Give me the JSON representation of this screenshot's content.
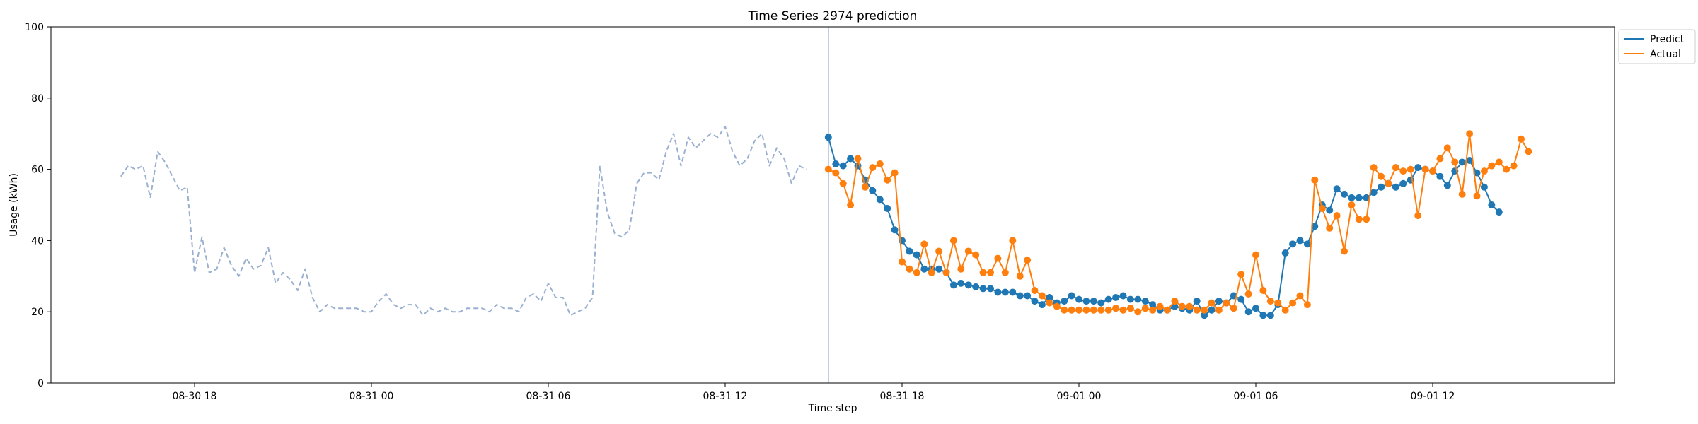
{
  "chart_data": {
    "type": "line",
    "title": "Time Series 2974 prediction",
    "xlabel": "Time step",
    "ylabel": "Usage (kWh)",
    "ylim": [
      0,
      100
    ],
    "xlim": [
      -24,
      152
    ],
    "yticks": [
      0,
      20,
      40,
      60,
      80,
      100
    ],
    "xticks": [
      {
        "x": 0,
        "label": "08-30 18"
      },
      {
        "x": 24,
        "label": "08-31 00"
      },
      {
        "x": 48,
        "label": "08-31 06"
      },
      {
        "x": 72,
        "label": "08-31 12"
      },
      {
        "x": 96,
        "label": "08-31 18"
      },
      {
        "x": 120,
        "label": "09-01 00"
      },
      {
        "x": 144,
        "label": "09-01 06"
      },
      {
        "x": 168,
        "label": "09-01 12"
      }
    ],
    "split_x": 86,
    "legend_location": "upper right outside",
    "series": [
      {
        "name": "",
        "style": "dashed",
        "color": "#9ab0d0",
        "x_start": -10,
        "values": [
          58,
          61,
          60,
          61,
          52,
          65,
          62,
          58,
          54,
          55,
          31,
          41,
          31,
          32,
          38,
          33,
          30,
          35,
          32,
          33,
          38,
          28,
          31,
          29,
          26,
          32,
          24,
          20,
          22,
          21,
          21,
          21,
          21,
          20,
          20,
          23,
          25,
          22,
          21,
          22,
          22,
          19,
          21,
          20,
          21,
          20,
          20,
          21,
          21,
          21,
          20,
          22,
          21,
          21,
          20,
          24,
          25,
          23,
          28,
          24,
          24,
          19,
          20,
          21,
          24,
          61,
          48,
          42,
          41,
          43,
          56,
          59,
          59,
          57,
          65,
          70,
          61,
          69,
          66,
          68,
          70,
          69,
          72,
          65,
          61,
          63,
          68,
          70,
          61,
          66,
          63,
          56,
          61,
          60
        ]
      },
      {
        "name": "Predict",
        "style": "solid-markers",
        "color": "#1f77b4",
        "x_start": 86,
        "values": [
          69,
          61.5,
          61,
          63,
          61,
          57,
          54,
          51.5,
          49,
          43,
          40,
          37,
          36,
          32,
          32,
          32,
          31,
          27.5,
          28,
          27.5,
          27,
          26.5,
          26.5,
          25.5,
          25.5,
          25.5,
          24.5,
          24.5,
          23,
          22,
          24,
          22.5,
          23,
          24.5,
          23.5,
          23,
          23,
          22.5,
          23.5,
          24,
          24.5,
          23.5,
          23.5,
          23,
          22,
          20.5,
          20.5,
          21.5,
          21,
          20.5,
          23,
          19,
          20.5,
          23,
          22.5,
          24.5,
          23.5,
          20,
          21,
          19,
          19,
          22,
          36.5,
          39,
          40,
          39,
          44,
          50,
          48.5,
          54.5,
          53,
          52,
          52,
          52,
          53.5,
          55,
          56,
          55,
          56,
          57,
          60.5,
          60,
          59.5,
          58,
          55.5,
          59.5,
          62,
          62.5,
          59,
          55,
          50,
          48
        ]
      },
      {
        "name": "Actual",
        "style": "solid-markers",
        "color": "#ff7f0e",
        "x_start": 86,
        "values": [
          60,
          59,
          56,
          50,
          63,
          55,
          60.5,
          61.5,
          57,
          59,
          34,
          32,
          31,
          39,
          31,
          37,
          31,
          40,
          32,
          37,
          36,
          31,
          31,
          35,
          31,
          40,
          30,
          34.5,
          26,
          24.5,
          22.5,
          21.5,
          20.5,
          20.5,
          20.5,
          20.5,
          20.5,
          20.5,
          20.5,
          21,
          20.5,
          21,
          20,
          21,
          20.5,
          21.5,
          20.5,
          23,
          21.5,
          21.5,
          20.5,
          20.5,
          22.5,
          20.5,
          22.5,
          21,
          30.5,
          25,
          36,
          26,
          23,
          22.5,
          20.5,
          22.5,
          24.5,
          22,
          57,
          49,
          43.5,
          47,
          37,
          50,
          46,
          46,
          60.5,
          58,
          56,
          60.5,
          59.5,
          60,
          47,
          60,
          59.5,
          63,
          66,
          62,
          53,
          70,
          52.5,
          59.5,
          61,
          62,
          60,
          61,
          68.5,
          65
        ]
      }
    ]
  }
}
